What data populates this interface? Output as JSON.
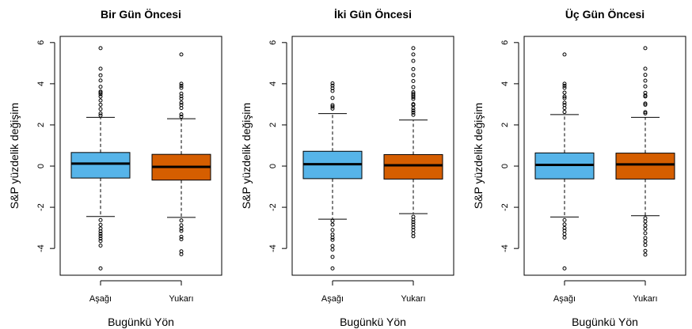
{
  "chart_data": [
    {
      "type": "boxplot",
      "title": "Bir Gün Öncesi",
      "xlabel": "Bugünkü Yön",
      "ylabel": "S&P yüzdelik değişim",
      "ylim": [
        -5.3,
        6.3
      ],
      "yticks": [
        -4,
        -2,
        0,
        2,
        4,
        6
      ],
      "grid": false,
      "categories": [
        "Aşağı",
        "Yukarı"
      ],
      "colors": [
        "#56B4E9",
        "#D55E00"
      ],
      "boxes": [
        {
          "q1": -0.58,
          "median": 0.12,
          "q3": 0.66,
          "whisker_low": -2.45,
          "whisker_high": 2.37,
          "outliers": [
            5.73,
            4.73,
            4.41,
            4.16,
            3.85,
            3.62,
            3.57,
            3.49,
            3.38,
            3.19,
            2.98,
            2.77,
            2.56,
            2.46,
            -2.62,
            -2.85,
            -3.03,
            -3.17,
            -3.29,
            -3.4,
            -3.52,
            -3.64,
            -3.86,
            -4.97
          ]
        },
        {
          "q1": -0.68,
          "median": -0.04,
          "q3": 0.57,
          "whisker_low": -2.49,
          "whisker_high": 2.3,
          "outliers": [
            5.42,
            4.0,
            3.9,
            3.8,
            3.52,
            3.39,
            3.27,
            3.08,
            2.97,
            2.82,
            2.51,
            2.4,
            -2.64,
            -2.87,
            -3.04,
            -3.15,
            -3.43,
            -3.55,
            -4.14,
            -4.28
          ]
        }
      ]
    },
    {
      "type": "boxplot",
      "title": "İki Gün Öncesi",
      "xlabel": "Bugünkü Yön",
      "ylabel": "S&P yüzdelik değişim",
      "ylim": [
        -5.3,
        6.3
      ],
      "yticks": [
        -4,
        -2,
        0,
        2,
        4,
        6
      ],
      "grid": false,
      "categories": [
        "Aşağı",
        "Yukarı"
      ],
      "colors": [
        "#56B4E9",
        "#D55E00"
      ],
      "boxes": [
        {
          "q1": -0.61,
          "median": 0.09,
          "q3": 0.72,
          "whisker_low": -2.58,
          "whisker_high": 2.55,
          "outliers": [
            4.02,
            3.91,
            3.78,
            3.65,
            3.31,
            2.96,
            2.88,
            2.79,
            -2.66,
            -2.84,
            -3.1,
            -3.32,
            -3.47,
            -3.58,
            -3.88,
            -4.05,
            -4.41,
            -4.97
          ]
        },
        {
          "q1": -0.63,
          "median": 0.04,
          "q3": 0.56,
          "whisker_low": -2.31,
          "whisker_high": 2.24,
          "outliers": [
            5.73,
            5.42,
            5.11,
            4.71,
            4.42,
            4.13,
            3.83,
            3.59,
            3.51,
            3.43,
            3.35,
            3.26,
            3.01,
            2.97,
            2.81,
            2.7,
            2.6,
            2.49,
            -2.46,
            -2.6,
            -2.72,
            -2.84,
            -2.97,
            -3.1,
            -3.26,
            -3.41
          ]
        }
      ]
    },
    {
      "type": "boxplot",
      "title": "Üç Gün Öncesi",
      "xlabel": "Bugünkü Yön",
      "ylabel": "S&P yüzdelik değişim",
      "ylim": [
        -5.3,
        6.3
      ],
      "yticks": [
        -4,
        -2,
        0,
        2,
        4,
        6
      ],
      "grid": false,
      "categories": [
        "Aşağı",
        "Yukarı"
      ],
      "colors": [
        "#56B4E9",
        "#D55E00"
      ],
      "boxes": [
        {
          "q1": -0.62,
          "median": 0.06,
          "q3": 0.64,
          "whisker_low": -2.47,
          "whisker_high": 2.5,
          "outliers": [
            5.42,
            4.0,
            3.9,
            3.8,
            3.57,
            3.38,
            3.3,
            3.08,
            2.97,
            2.82,
            2.63,
            -2.62,
            -2.83,
            -3.01,
            -3.14,
            -3.3,
            -3.47,
            -4.97
          ]
        },
        {
          "q1": -0.63,
          "median": 0.08,
          "q3": 0.63,
          "whisker_low": -2.41,
          "whisker_high": 2.37,
          "outliers": [
            5.73,
            4.73,
            4.43,
            4.15,
            3.87,
            3.56,
            3.43,
            3.38,
            3.04,
            2.98,
            2.62,
            2.56,
            -2.53,
            -2.69,
            -2.88,
            -3.05,
            -3.26,
            -3.49,
            -3.66,
            -3.83,
            -4.12,
            -4.3
          ]
        }
      ]
    }
  ]
}
